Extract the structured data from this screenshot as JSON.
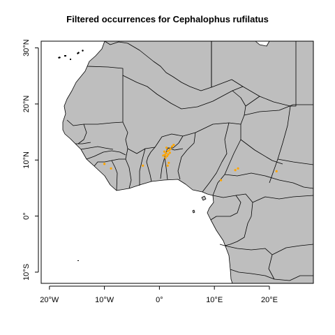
{
  "title": "Filtered occurrences for Cephalophus rufilatus",
  "map": {
    "lon_range": [
      -21.5,
      28
    ],
    "lat_range": [
      -12,
      31.2
    ],
    "land_color": "#bebebe",
    "point_color": "#ffa500",
    "x_ticks": [
      {
        "value": -20,
        "label": "20°W"
      },
      {
        "value": -10,
        "label": "10°W"
      },
      {
        "value": 0,
        "label": "0°"
      },
      {
        "value": 10,
        "label": "10°E"
      },
      {
        "value": 20,
        "label": "20°E"
      }
    ],
    "y_ticks": [
      {
        "value": -10,
        "label": "10°S"
      },
      {
        "value": 0,
        "label": "0°"
      },
      {
        "value": 10,
        "label": "10°N"
      },
      {
        "value": 20,
        "label": "20°N"
      },
      {
        "value": 30,
        "label": "30°N"
      }
    ]
  },
  "occurrences": [
    {
      "lon": 1.2,
      "lat": 11.2
    },
    {
      "lon": 1.5,
      "lat": 11.6
    },
    {
      "lon": 1.0,
      "lat": 10.9
    },
    {
      "lon": 1.8,
      "lat": 11.8
    },
    {
      "lon": 1.4,
      "lat": 10.7
    },
    {
      "lon": 2.0,
      "lat": 12.0
    },
    {
      "lon": 0.9,
      "lat": 11.5
    },
    {
      "lon": 1.6,
      "lat": 11.0
    },
    {
      "lon": 2.3,
      "lat": 12.4
    },
    {
      "lon": 1.1,
      "lat": 10.4
    },
    {
      "lon": 1.9,
      "lat": 11.3
    },
    {
      "lon": 1.3,
      "lat": 12.2
    },
    {
      "lon": 0.7,
      "lat": 10.8
    },
    {
      "lon": 2.6,
      "lat": 12.7
    },
    {
      "lon": 1.7,
      "lat": 9.5
    },
    {
      "lon": 1.5,
      "lat": 9.0
    },
    {
      "lon": -3.0,
      "lat": 9.0
    },
    {
      "lon": -8.8,
      "lat": 8.5
    },
    {
      "lon": -10.0,
      "lat": 9.3
    },
    {
      "lon": 11.2,
      "lat": 6.4
    },
    {
      "lon": 13.8,
      "lat": 8.2
    },
    {
      "lon": 14.3,
      "lat": 8.5
    },
    {
      "lon": 21.3,
      "lat": 8.0
    }
  ]
}
